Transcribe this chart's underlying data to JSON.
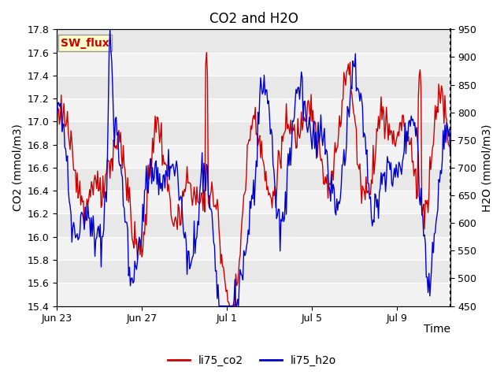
{
  "title": "CO2 and H2O",
  "xlabel": "Time",
  "ylabel_left": "CO2 (mmol/m3)",
  "ylabel_right": "H2O (mmol/m3)",
  "ylim_left": [
    15.4,
    17.8
  ],
  "ylim_right": [
    450,
    950
  ],
  "yticks_left": [
    15.4,
    15.6,
    15.8,
    16.0,
    16.2,
    16.4,
    16.6,
    16.8,
    17.0,
    17.2,
    17.4,
    17.6,
    17.8
  ],
  "yticks_right": [
    450,
    500,
    550,
    600,
    650,
    700,
    750,
    800,
    850,
    900,
    950
  ],
  "xtick_labels": [
    "Jun 23",
    "Jun 27",
    "Jul 1",
    "Jul 5",
    "Jul 9"
  ],
  "color_co2": "#cc0000",
  "color_h2o": "#0000cc",
  "legend_co2": "li75_co2",
  "legend_h2o": "li75_h2o",
  "annotation_text": "SW_flux",
  "annotation_color": "#cc0000",
  "annotation_bg": "#ffffcc",
  "bg_color": "#e8e8e8",
  "stripe_light": "#f2f2f2",
  "linewidth": 1.0,
  "title_fontsize": 12,
  "axis_fontsize": 10,
  "tick_fontsize": 9,
  "legend_fontsize": 10
}
